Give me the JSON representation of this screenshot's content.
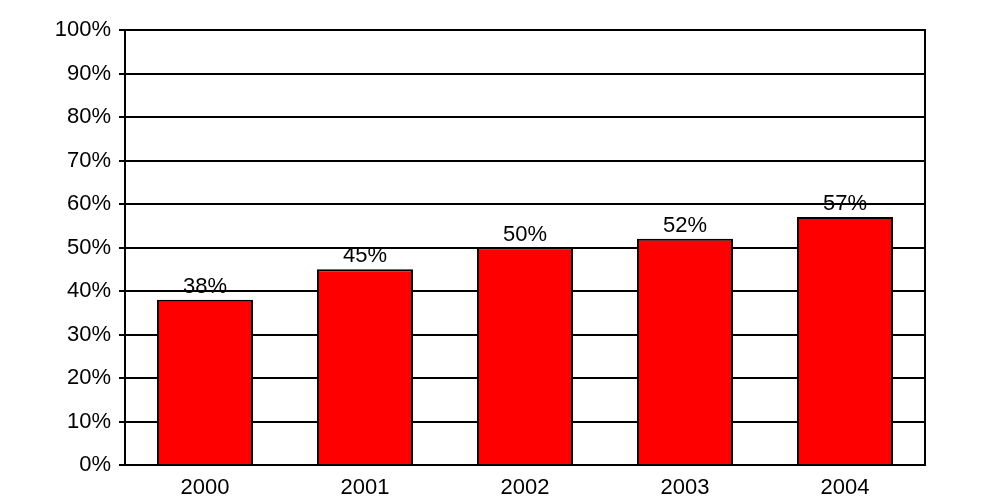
{
  "chart_data": {
    "type": "bar",
    "categories": [
      "2000",
      "2001",
      "2002",
      "2003",
      "2004"
    ],
    "values": [
      38,
      45,
      50,
      52,
      57
    ],
    "value_labels": [
      "38%",
      "45%",
      "50%",
      "52%",
      "57%"
    ],
    "color": "#ff0000",
    "ylim": [
      0,
      100
    ],
    "yticks": [
      {
        "value": 0,
        "label": "0%"
      },
      {
        "value": 10,
        "label": "10%"
      },
      {
        "value": 20,
        "label": "20%"
      },
      {
        "value": 30,
        "label": "30%"
      },
      {
        "value": 40,
        "label": "40%"
      },
      {
        "value": 50,
        "label": "50%"
      },
      {
        "value": 60,
        "label": "60%"
      },
      {
        "value": 70,
        "label": "70%"
      },
      {
        "value": 80,
        "label": "80%"
      },
      {
        "value": 90,
        "label": "90%"
      },
      {
        "value": 100,
        "label": "100%"
      }
    ],
    "grid": true,
    "data_labels": true
  }
}
